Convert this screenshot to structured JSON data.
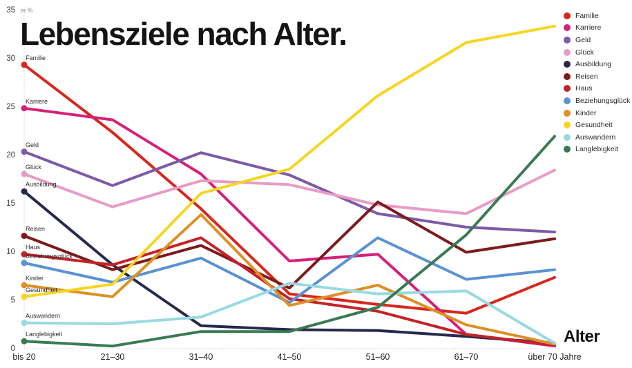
{
  "page": {
    "title": "Lebensziele nach Alter.",
    "unit_label": "in %",
    "x_axis_title": "Alter"
  },
  "chart_data": {
    "type": "line",
    "title": "Lebensziele nach Alter.",
    "unit": "in %",
    "xlabel": "Alter",
    "categories": [
      "bis 20",
      "21–30",
      "31–40",
      "41–50",
      "51–60",
      "61–70",
      "über 70 Jahre"
    ],
    "y_ticks": [
      0,
      5,
      10,
      15,
      20,
      25,
      30,
      35
    ],
    "ylim": [
      0,
      35
    ],
    "grid": "off",
    "legend_position": "top-right",
    "series": [
      {
        "name": "Familie",
        "color": "#d7271d",
        "values": [
          29.3,
          22.3,
          14.4,
          5.6,
          4.5,
          3.6,
          7.3
        ]
      },
      {
        "name": "Karriere",
        "color": "#d62078",
        "values": [
          24.8,
          23.6,
          18.0,
          9.0,
          9.7,
          1.4,
          0.2
        ]
      },
      {
        "name": "Geld",
        "color": "#7c5ba6",
        "values": [
          20.3,
          16.8,
          20.2,
          17.9,
          13.9,
          12.5,
          12.0
        ]
      },
      {
        "name": "Glück",
        "color": "#e89cc5",
        "values": [
          18.0,
          14.6,
          17.3,
          16.9,
          14.8,
          13.9,
          18.4
        ]
      },
      {
        "name": "Ausbildung",
        "color": "#252a4d",
        "values": [
          16.2,
          8.6,
          2.3,
          1.9,
          1.8,
          1.2,
          0.5
        ]
      },
      {
        "name": "Reisen",
        "color": "#7d1a1c",
        "values": [
          11.6,
          8.1,
          10.6,
          6.2,
          15.1,
          9.9,
          11.3
        ]
      },
      {
        "name": "Haus",
        "color": "#c22329",
        "values": [
          9.7,
          8.6,
          11.4,
          5.1,
          3.8,
          1.4,
          0.3
        ]
      },
      {
        "name": "Beziehungsglück",
        "color": "#5a92d2",
        "values": [
          8.8,
          6.8,
          9.3,
          4.7,
          11.4,
          7.1,
          8.1
        ]
      },
      {
        "name": "Kinder",
        "color": "#dd9025",
        "values": [
          6.5,
          5.3,
          13.8,
          4.4,
          6.5,
          2.4,
          0.4
        ]
      },
      {
        "name": "Gesundheit",
        "color": "#f6d521",
        "values": [
          5.3,
          6.6,
          16.0,
          18.5,
          26.1,
          31.6,
          33.3
        ]
      },
      {
        "name": "Auswandern",
        "color": "#99d9e2",
        "values": [
          2.6,
          2.5,
          3.2,
          6.7,
          5.6,
          5.9,
          0.5
        ]
      },
      {
        "name": "Langlebigkeit",
        "color": "#397a52",
        "values": [
          0.7,
          0.2,
          1.7,
          1.7,
          4.2,
          11.7,
          21.9
        ]
      }
    ]
  }
}
